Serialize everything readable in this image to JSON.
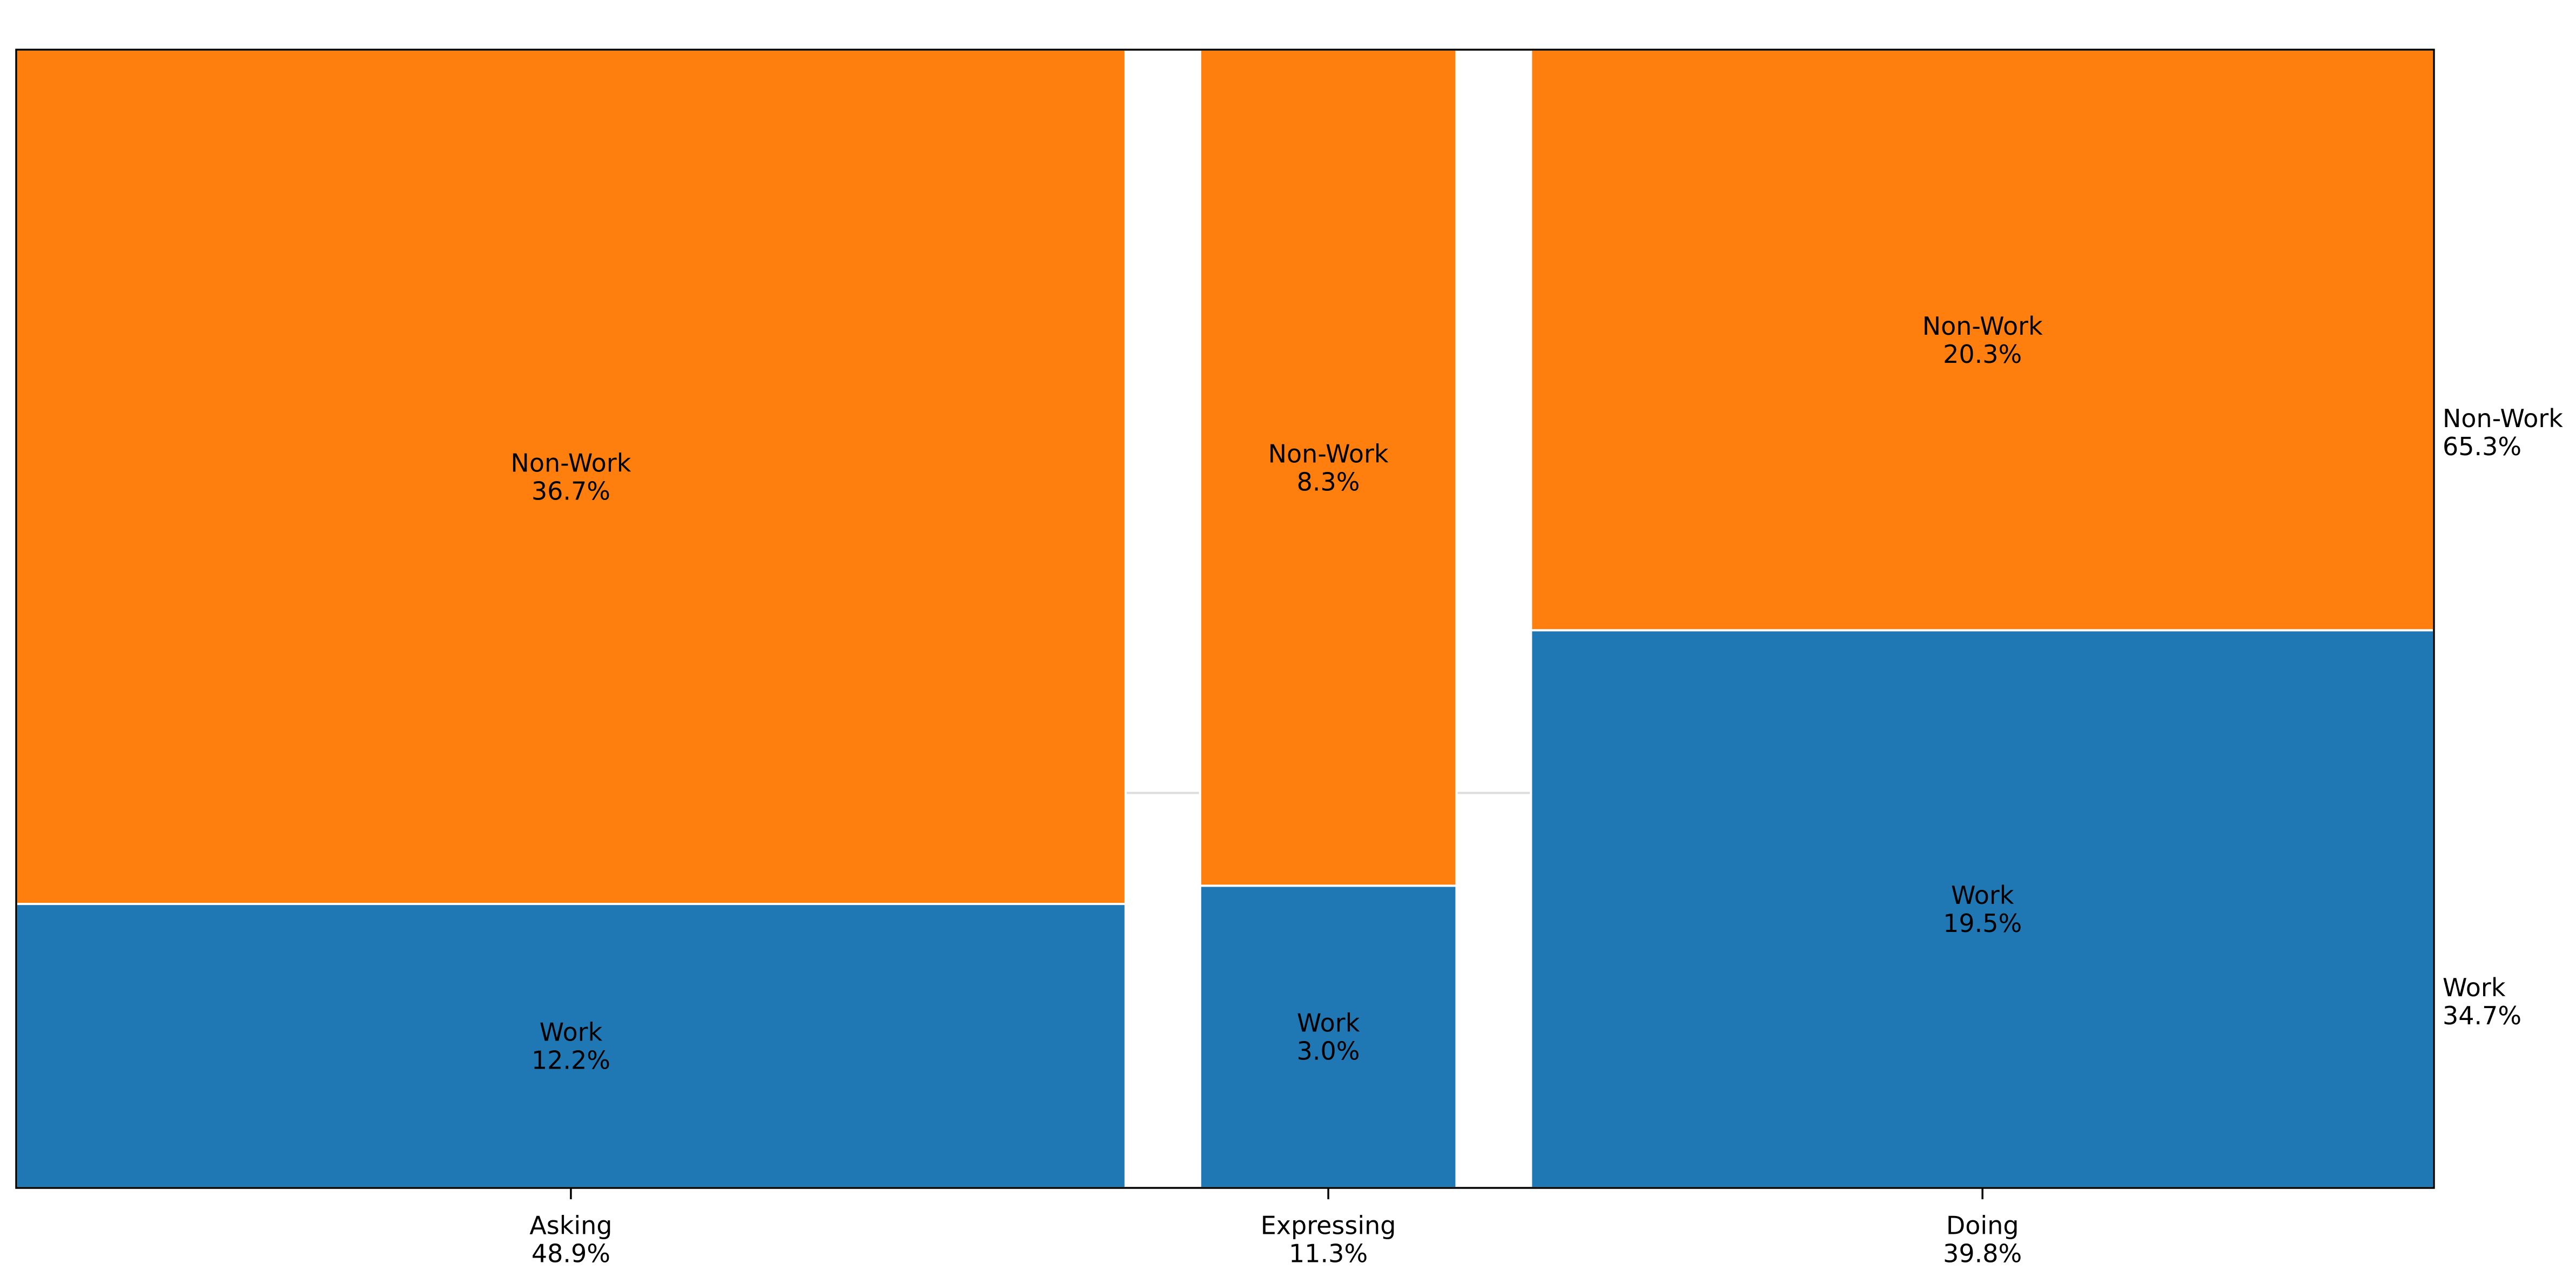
{
  "chart_data": {
    "type": "mosaic",
    "categories": [
      {
        "name": "Asking",
        "share_label": "48.9%",
        "share": 48.9
      },
      {
        "name": "Expressing",
        "share_label": "11.3%",
        "share": 11.3
      },
      {
        "name": "Doing",
        "share_label": "39.8%",
        "share": 39.8
      }
    ],
    "segments": [
      "Work",
      "Non-Work"
    ],
    "cells": [
      {
        "category": "Asking",
        "segment": "Work",
        "label": "Work",
        "value_label": "12.2%",
        "value": 12.2
      },
      {
        "category": "Asking",
        "segment": "Non-Work",
        "label": "Non-Work",
        "value_label": "36.7%",
        "value": 36.7
      },
      {
        "category": "Expressing",
        "segment": "Work",
        "label": "Work",
        "value_label": "3.0%",
        "value": 3.0
      },
      {
        "category": "Expressing",
        "segment": "Non-Work",
        "label": "Non-Work",
        "value_label": "8.3%",
        "value": 8.3
      },
      {
        "category": "Doing",
        "segment": "Work",
        "label": "Work",
        "value_label": "19.5%",
        "value": 19.5
      },
      {
        "category": "Doing",
        "segment": "Non-Work",
        "label": "Non-Work",
        "value_label": "20.3%",
        "value": 20.3
      }
    ],
    "totals": [
      {
        "segment": "Non-Work",
        "label": "Non-Work",
        "value_label": "65.3%",
        "value": 65.3
      },
      {
        "segment": "Work",
        "label": "Work",
        "value_label": "34.7%",
        "value": 34.7
      }
    ],
    "colors": {
      "Work": "#1f77b4",
      "Non-Work": "#ff7f0e"
    },
    "title": "",
    "xlabel": "",
    "ylabel": ""
  }
}
